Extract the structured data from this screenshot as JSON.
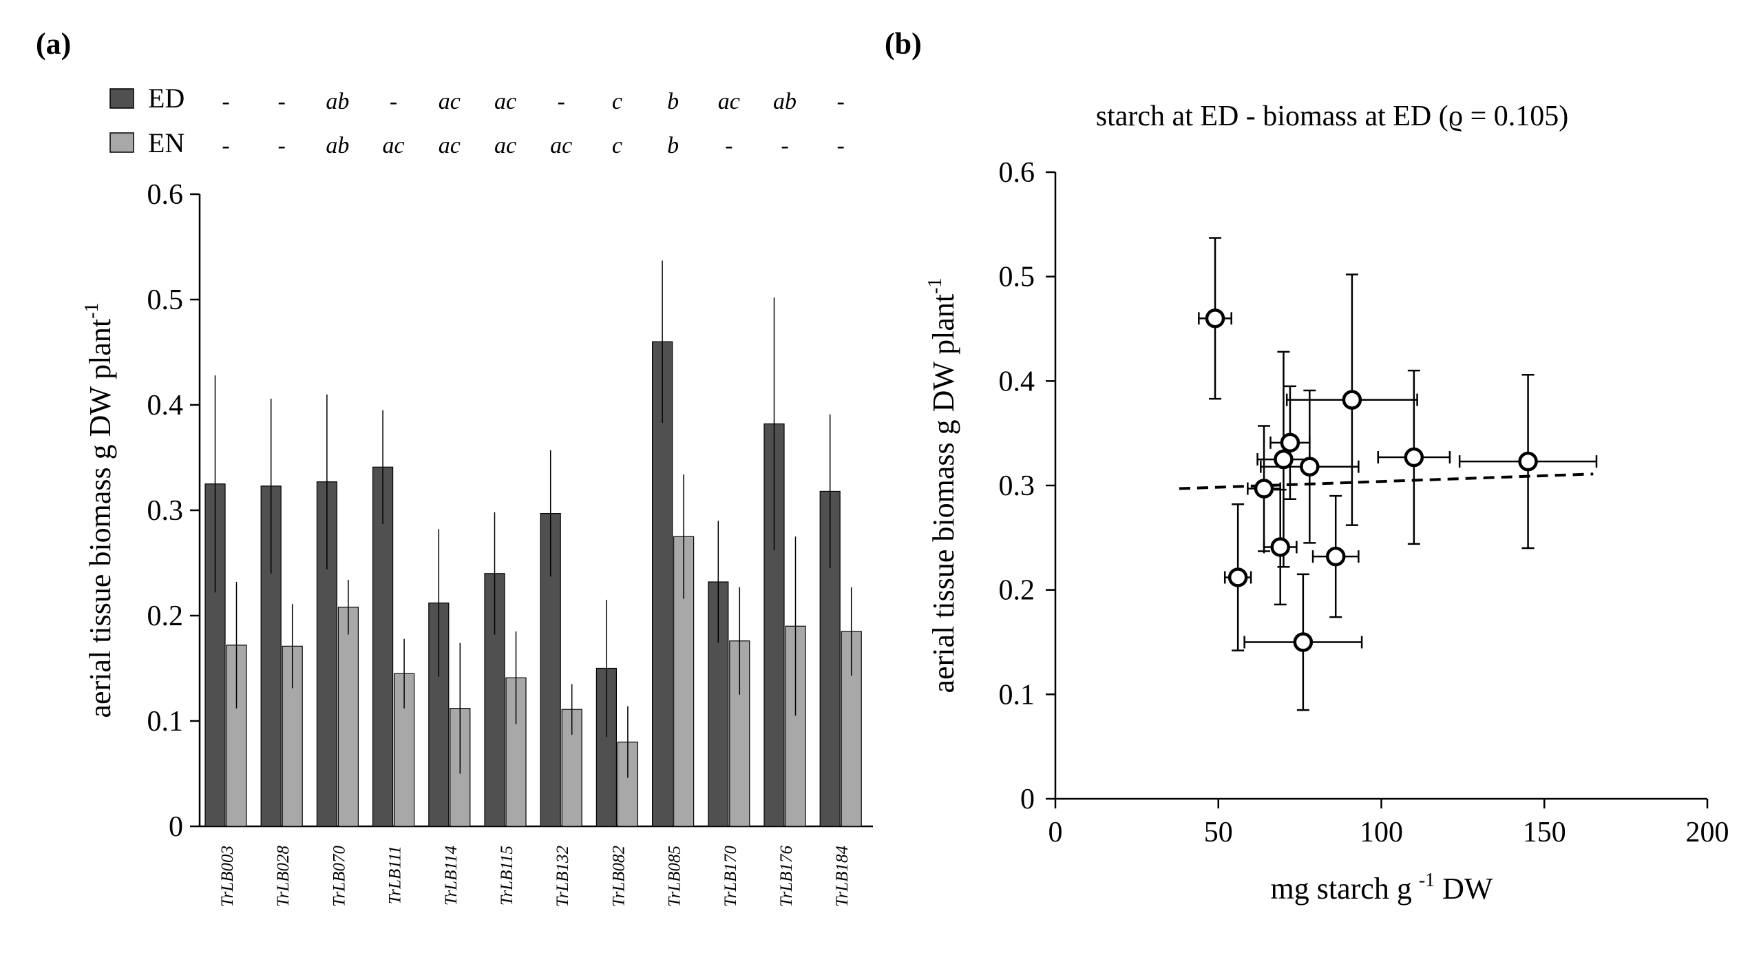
{
  "panel_a": {
    "label": "(a)",
    "legend": {
      "ed_label": "ED",
      "en_label": "EN"
    },
    "letters_ed": [
      "-",
      "-",
      "ab",
      "-",
      "ac",
      "ac",
      "-",
      "c",
      "b",
      "ac",
      "ab",
      "-"
    ],
    "letters_en": [
      "-",
      "-",
      "ab",
      "ac",
      "ac",
      "ac",
      "ac",
      "c",
      "b",
      "-",
      "-",
      "-"
    ]
  },
  "panel_b": {
    "label": "(b)"
  },
  "colors": {
    "ed": "#505050",
    "en": "#a8a8a8",
    "axis": "#000000"
  },
  "chart_data": [
    {
      "type": "bar",
      "ylabel": "aerial tissue biomass g DW plant",
      "ylabel_sup": "-1",
      "ylim": [
        0,
        0.6
      ],
      "yticks": [
        "0",
        "0.1",
        "0.2",
        "0.3",
        "0.4",
        "0.5",
        "0.6"
      ],
      "categories": [
        "TrLB003",
        "TrLB028",
        "TrLB070",
        "TrLB111",
        "TrLB114",
        "TrLB115",
        "TrLB132",
        "TrLB082",
        "TrLB085",
        "TrLB170",
        "TrLB176",
        "TrLB184"
      ],
      "series": [
        {
          "name": "ED",
          "values": [
            0.325,
            0.323,
            0.327,
            0.341,
            0.212,
            0.24,
            0.297,
            0.15,
            0.46,
            0.232,
            0.382,
            0.318
          ],
          "errors": [
            0.103,
            0.083,
            0.083,
            0.054,
            0.07,
            0.058,
            0.06,
            0.065,
            0.077,
            0.058,
            0.12,
            0.073
          ]
        },
        {
          "name": "EN",
          "values": [
            0.172,
            0.171,
            0.208,
            0.145,
            0.112,
            0.141,
            0.111,
            0.08,
            0.275,
            0.176,
            0.19,
            0.185
          ],
          "errors": [
            0.06,
            0.04,
            0.026,
            0.033,
            0.062,
            0.044,
            0.024,
            0.034,
            0.059,
            0.051,
            0.085,
            0.042
          ]
        }
      ]
    },
    {
      "type": "scatter",
      "title": "starch at ED - biomass at ED (ϱ = 0.105)",
      "xlabel_pre": "mg starch g",
      "xlabel_sup": "-1",
      "xlabel_post": " DW",
      "ylabel": "aerial tissue biomass g DW plant",
      "ylabel_sup": "-1",
      "xlim": [
        0,
        200
      ],
      "ylim": [
        0,
        0.6
      ],
      "xticks": [
        "0",
        "50",
        "100",
        "150",
        "200"
      ],
      "yticks": [
        "0",
        "0.1",
        "0.2",
        "0.3",
        "0.4",
        "0.5",
        "0.6"
      ],
      "points": [
        {
          "x": 49,
          "y": 0.46,
          "xerr": 5,
          "yerr": 0.077
        },
        {
          "x": 56,
          "y": 0.212,
          "xerr": 4,
          "yerr": 0.07
        },
        {
          "x": 64,
          "y": 0.297,
          "xerr": 5,
          "yerr": 0.06
        },
        {
          "x": 69,
          "y": 0.241,
          "xerr": 5,
          "yerr": 0.055
        },
        {
          "x": 70,
          "y": 0.325,
          "xerr": 8,
          "yerr": 0.103
        },
        {
          "x": 72,
          "y": 0.341,
          "xerr": 6,
          "yerr": 0.054
        },
        {
          "x": 76,
          "y": 0.15,
          "xerr": 18,
          "yerr": 0.065
        },
        {
          "x": 78,
          "y": 0.318,
          "xerr": 15,
          "yerr": 0.073
        },
        {
          "x": 86,
          "y": 0.232,
          "xerr": 7,
          "yerr": 0.058
        },
        {
          "x": 91,
          "y": 0.382,
          "xerr": 20,
          "yerr": 0.12
        },
        {
          "x": 110,
          "y": 0.327,
          "xerr": 11,
          "yerr": 0.083
        },
        {
          "x": 145,
          "y": 0.323,
          "xerr": 21,
          "yerr": 0.083
        }
      ],
      "trendline": {
        "x": [
          38,
          165
        ],
        "y": [
          0.297,
          0.311
        ],
        "style": "dashed"
      }
    }
  ]
}
